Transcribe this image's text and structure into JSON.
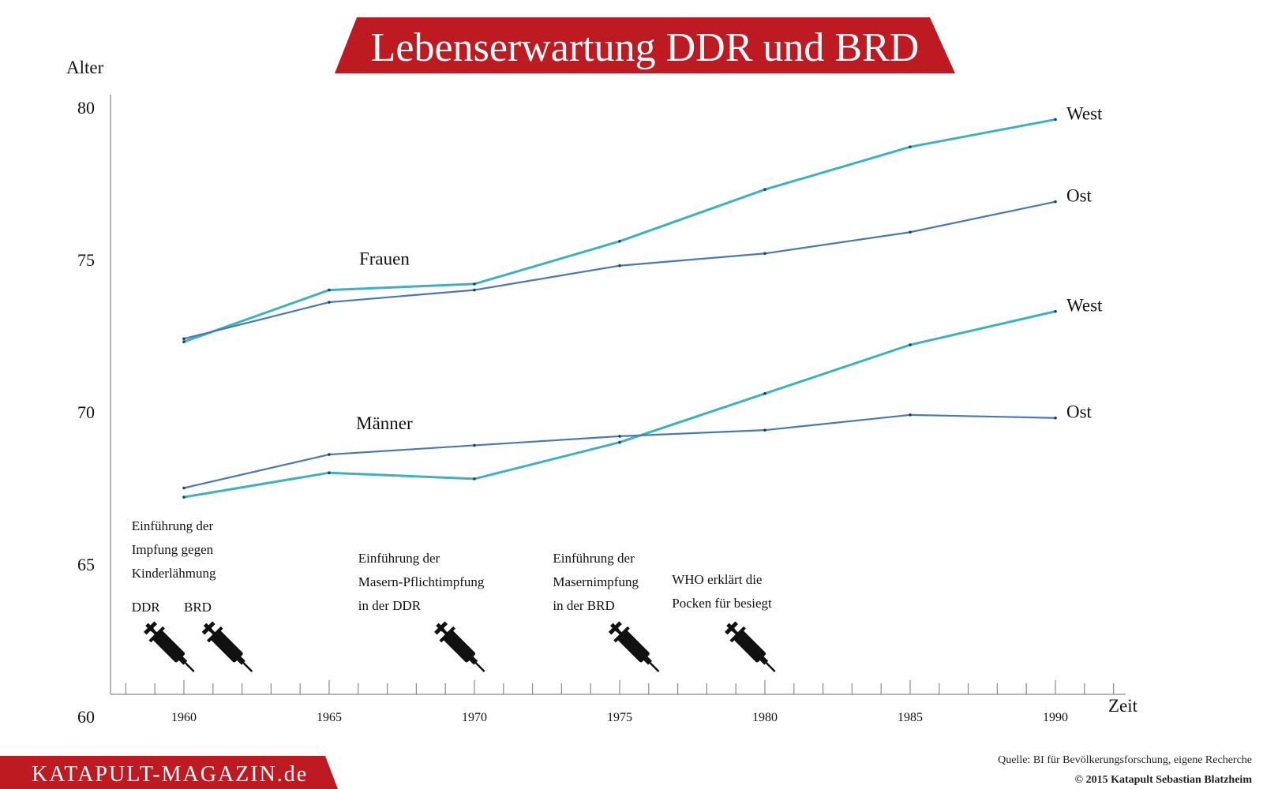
{
  "title": "Lebenserwartung DDR und BRD",
  "brand": "KATAPULT-MAGAZIN.de",
  "source": "Quelle: BI für Bevölkerungsforschung, eigene Recherche",
  "credit": "© 2015 Katapult Sebastian Blatzheim",
  "colors": {
    "west": "#3bb3be",
    "ost": "#4a78b4",
    "banner": "#be1a22"
  },
  "chart_data": {
    "type": "line",
    "ylabel": "Alter",
    "xlabel": "Zeit",
    "ylim": [
      60,
      80
    ],
    "yticks": [
      "60",
      "65",
      "70",
      "75",
      "80"
    ],
    "xticks": [
      "1960",
      "1965",
      "1970",
      "1975",
      "1980",
      "1985",
      "1990"
    ],
    "x": [
      1960,
      1965,
      1970,
      1975,
      1980,
      1985,
      1990
    ],
    "grid": false,
    "groups": [
      {
        "label": "Frauen",
        "series": [
          {
            "name": "West",
            "color": "#3bb3be",
            "values": [
              72.3,
              74.0,
              74.2,
              75.6,
              77.3,
              78.7,
              79.6
            ]
          },
          {
            "name": "Ost",
            "color": "#4a78b4",
            "values": [
              72.4,
              73.6,
              74.0,
              74.8,
              75.2,
              75.9,
              76.9
            ]
          }
        ]
      },
      {
        "label": "Männer",
        "series": [
          {
            "name": "West",
            "color": "#3bb3be",
            "values": [
              67.2,
              68.0,
              67.8,
              69.0,
              70.6,
              72.2,
              73.3
            ]
          },
          {
            "name": "Ost",
            "color": "#4a78b4",
            "values": [
              67.5,
              68.6,
              68.9,
              69.2,
              69.4,
              69.9,
              69.8
            ]
          }
        ]
      }
    ],
    "annotations": [
      {
        "lines": [
          "Einführung der",
          "Impfung gegen",
          "Kinderlähmung"
        ],
        "year": 1958.2
      },
      {
        "lines": [
          "DDR"
        ],
        "year": 1958.2
      },
      {
        "lines": [
          "BRD"
        ],
        "year": 1960.0
      },
      {
        "lines": [
          "Einführung der",
          "Masern-Pflichtimpfung",
          "in der DDR"
        ],
        "year": 1966.0
      },
      {
        "lines": [
          "Einführung der",
          "Masernimpfung",
          "in der BRD"
        ],
        "year": 1972.7
      },
      {
        "lines": [
          "WHO erklärt die",
          "Pocken für besiegt"
        ],
        "year": 1976.8
      }
    ],
    "syringes": [
      1959.5,
      1961.5,
      1969.5,
      1975.5,
      1979.5
    ]
  }
}
